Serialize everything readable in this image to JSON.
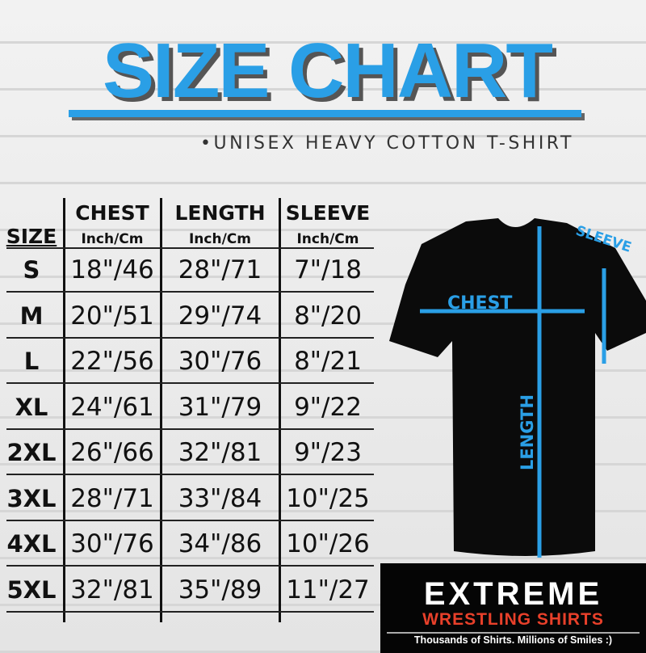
{
  "title": "SIZE CHART",
  "subtitle": "•UNISEX HEAVY COTTON T-SHIRT",
  "table": {
    "headers": [
      {
        "label": "SIZE",
        "unit": ""
      },
      {
        "label": "CHEST",
        "unit": "Inch/Cm"
      },
      {
        "label": "LENGTH",
        "unit": "Inch/Cm"
      },
      {
        "label": "SLEEVE",
        "unit": "Inch/Cm"
      }
    ],
    "rows": [
      [
        "S",
        "18\"/46",
        "28\"/71",
        "7\"/18"
      ],
      [
        "M",
        "20\"/51",
        "29\"/74",
        "8\"/20"
      ],
      [
        "L",
        "22\"/56",
        "30\"/76",
        "8\"/21"
      ],
      [
        "XL",
        "24\"/61",
        "31\"/79",
        "9\"/22"
      ],
      [
        "2XL",
        "26\"/66",
        "32\"/81",
        "9\"/23"
      ],
      [
        "3XL",
        "28\"/71",
        "33\"/84",
        "10\"/25"
      ],
      [
        "4XL",
        "30\"/76",
        "34\"/86",
        "10\"/26"
      ],
      [
        "5XL",
        "32\"/81",
        "35\"/89",
        "11\"/27"
      ]
    ]
  },
  "diagram": {
    "chest": "CHEST",
    "length": "LENGTH",
    "sleeve": "SLEEVE"
  },
  "logo": {
    "line1": "EXTREME",
    "line2": "WRESTLING SHIRTS",
    "tagline": "Thousands of Shirts. Millions of Smiles :)"
  },
  "colors": {
    "accent": "#2a9fe6",
    "logo_red": "#e8402a"
  }
}
